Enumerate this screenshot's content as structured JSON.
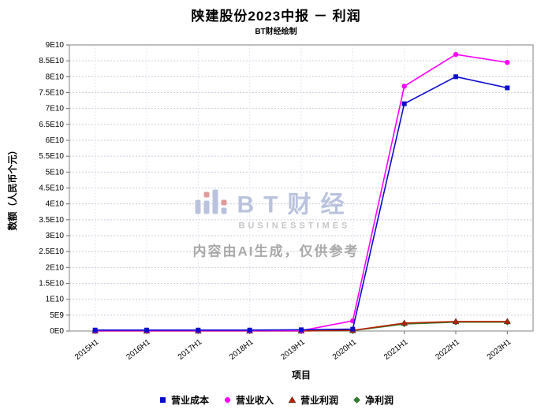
{
  "title": "陕建股份2023中报 － 利润",
  "subtitle": "BT财经绘制",
  "watermark": {
    "brand": "BT财经",
    "brand_sub": "BUSINESSTIMES",
    "disclaimer": "内容由AI生成，仅供参考"
  },
  "chart_data": {
    "type": "line",
    "title": "陕建股份2023中报 － 利润",
    "xlabel": "项目",
    "ylabel": "数额（人民币个元）",
    "x": [
      "2015H1",
      "2016H1",
      "2017H1",
      "2018H1",
      "2019H1",
      "2020H1",
      "2021H1",
      "2022H1",
      "2023H1"
    ],
    "ylim": [
      0,
      90000000000.0
    ],
    "ytick_step": 5000000000.0,
    "ytick_labels": [
      "0E0",
      "5E9",
      "1E10",
      "1.5E10",
      "2E10",
      "2.5E10",
      "3E10",
      "3.5E10",
      "4E10",
      "4.5E10",
      "5E10",
      "5.5E10",
      "6E10",
      "6.5E10",
      "7E10",
      "7.5E10",
      "8E10",
      "8.5E10",
      "9E10"
    ],
    "grid": true,
    "legend_position": "bottom",
    "series": [
      {
        "name": "营业成本",
        "color": "#0b0bcc",
        "marker": "square",
        "values": [
          300000000.0,
          300000000.0,
          300000000.0,
          300000000.0,
          400000000.0,
          600000000.0,
          71500000000.0,
          80000000000.0,
          76500000000.0
        ]
      },
      {
        "name": "营业收入",
        "color": "#ff00ff",
        "marker": "circle",
        "values": [
          100000000.0,
          100000000.0,
          100000000.0,
          100000000.0,
          100000000.0,
          3200000000.0,
          77000000000.0,
          87000000000.0,
          84500000000.0
        ]
      },
      {
        "name": "营业利润",
        "color": "#bb2200",
        "marker": "triangle",
        "values": [
          50000000.0,
          50000000.0,
          50000000.0,
          50000000.0,
          50000000.0,
          200000000.0,
          2500000000.0,
          3000000000.0,
          3000000000.0
        ]
      },
      {
        "name": "净利润",
        "color": "#2e7d2e",
        "marker": "diamond",
        "values": [
          40000000.0,
          40000000.0,
          40000000.0,
          40000000.0,
          40000000.0,
          150000000.0,
          2200000000.0,
          2800000000.0,
          2800000000.0
        ]
      }
    ],
    "colors": {
      "grid_h": "#ccccdd",
      "grid_v": "#e7e7f0",
      "border": "#808080",
      "tick": "#666666"
    }
  }
}
